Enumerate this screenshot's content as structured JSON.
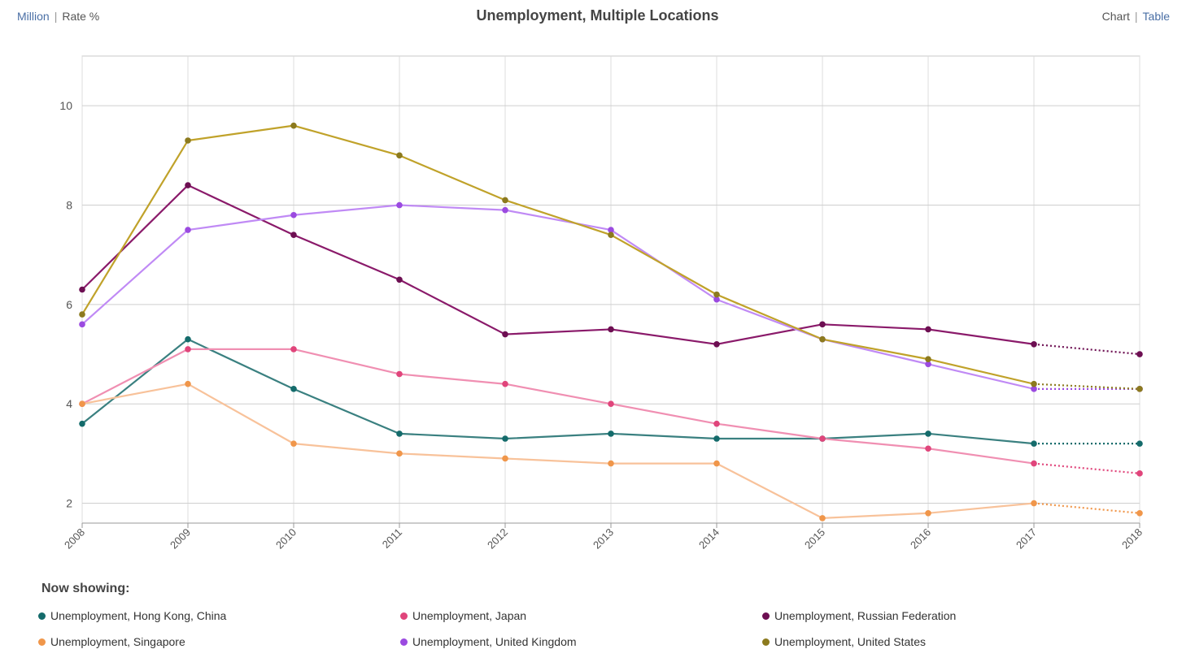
{
  "unit_toggle": {
    "left": "Million",
    "right": "Rate %",
    "separator": "|"
  },
  "view_toggle": {
    "left": "Chart",
    "right": "Table",
    "separator": "|"
  },
  "legend": {
    "heading": "Now showing:"
  },
  "chart_data": {
    "type": "line",
    "title": "Unemployment, Multiple Locations",
    "xlabel": "",
    "ylabel": "",
    "x": [
      2008,
      2009,
      2010,
      2011,
      2012,
      2013,
      2014,
      2015,
      2016,
      2017,
      2018
    ],
    "xlim": [
      2008,
      2018
    ],
    "ylim": [
      1.6,
      11
    ],
    "y_ticks": [
      2,
      4,
      6,
      8,
      10
    ],
    "grid": true,
    "legend_position": "bottom",
    "projected_from": 2017,
    "series": [
      {
        "name": "Unemployment, Hong Kong, China",
        "line_color": "#3a8080",
        "marker_color": "#146b6b",
        "values": [
          3.6,
          5.3,
          4.3,
          3.4,
          3.3,
          3.4,
          3.3,
          3.3,
          3.4,
          3.2,
          3.2
        ]
      },
      {
        "name": "Unemployment, Japan",
        "line_color": "#f08fb2",
        "marker_color": "#e0457b",
        "values": [
          4.0,
          5.1,
          5.1,
          4.6,
          4.4,
          4.0,
          3.6,
          3.3,
          3.1,
          2.8,
          2.6
        ]
      },
      {
        "name": "Unemployment, Russian Federation",
        "line_color": "#8a1a6a",
        "marker_color": "#6d0f52",
        "values": [
          6.3,
          8.4,
          7.4,
          6.5,
          5.4,
          5.5,
          5.2,
          5.6,
          5.5,
          5.2,
          5.0
        ]
      },
      {
        "name": "Unemployment, Singapore",
        "line_color": "#f8c29a",
        "marker_color": "#f0964a",
        "values": [
          4.0,
          4.4,
          3.2,
          3.0,
          2.9,
          2.8,
          2.8,
          1.7,
          1.8,
          2.0,
          1.8
        ]
      },
      {
        "name": "Unemployment, United Kingdom",
        "line_color": "#c08af5",
        "marker_color": "#9b4ae0",
        "values": [
          5.6,
          7.5,
          7.8,
          8.0,
          7.9,
          7.5,
          6.1,
          5.3,
          4.8,
          4.3,
          4.3
        ]
      },
      {
        "name": "Unemployment, United States",
        "line_color": "#c0a22a",
        "marker_color": "#8c7a1e",
        "values": [
          5.8,
          9.3,
          9.6,
          9.0,
          8.1,
          7.4,
          6.2,
          5.3,
          4.9,
          4.4,
          4.3
        ]
      }
    ]
  }
}
